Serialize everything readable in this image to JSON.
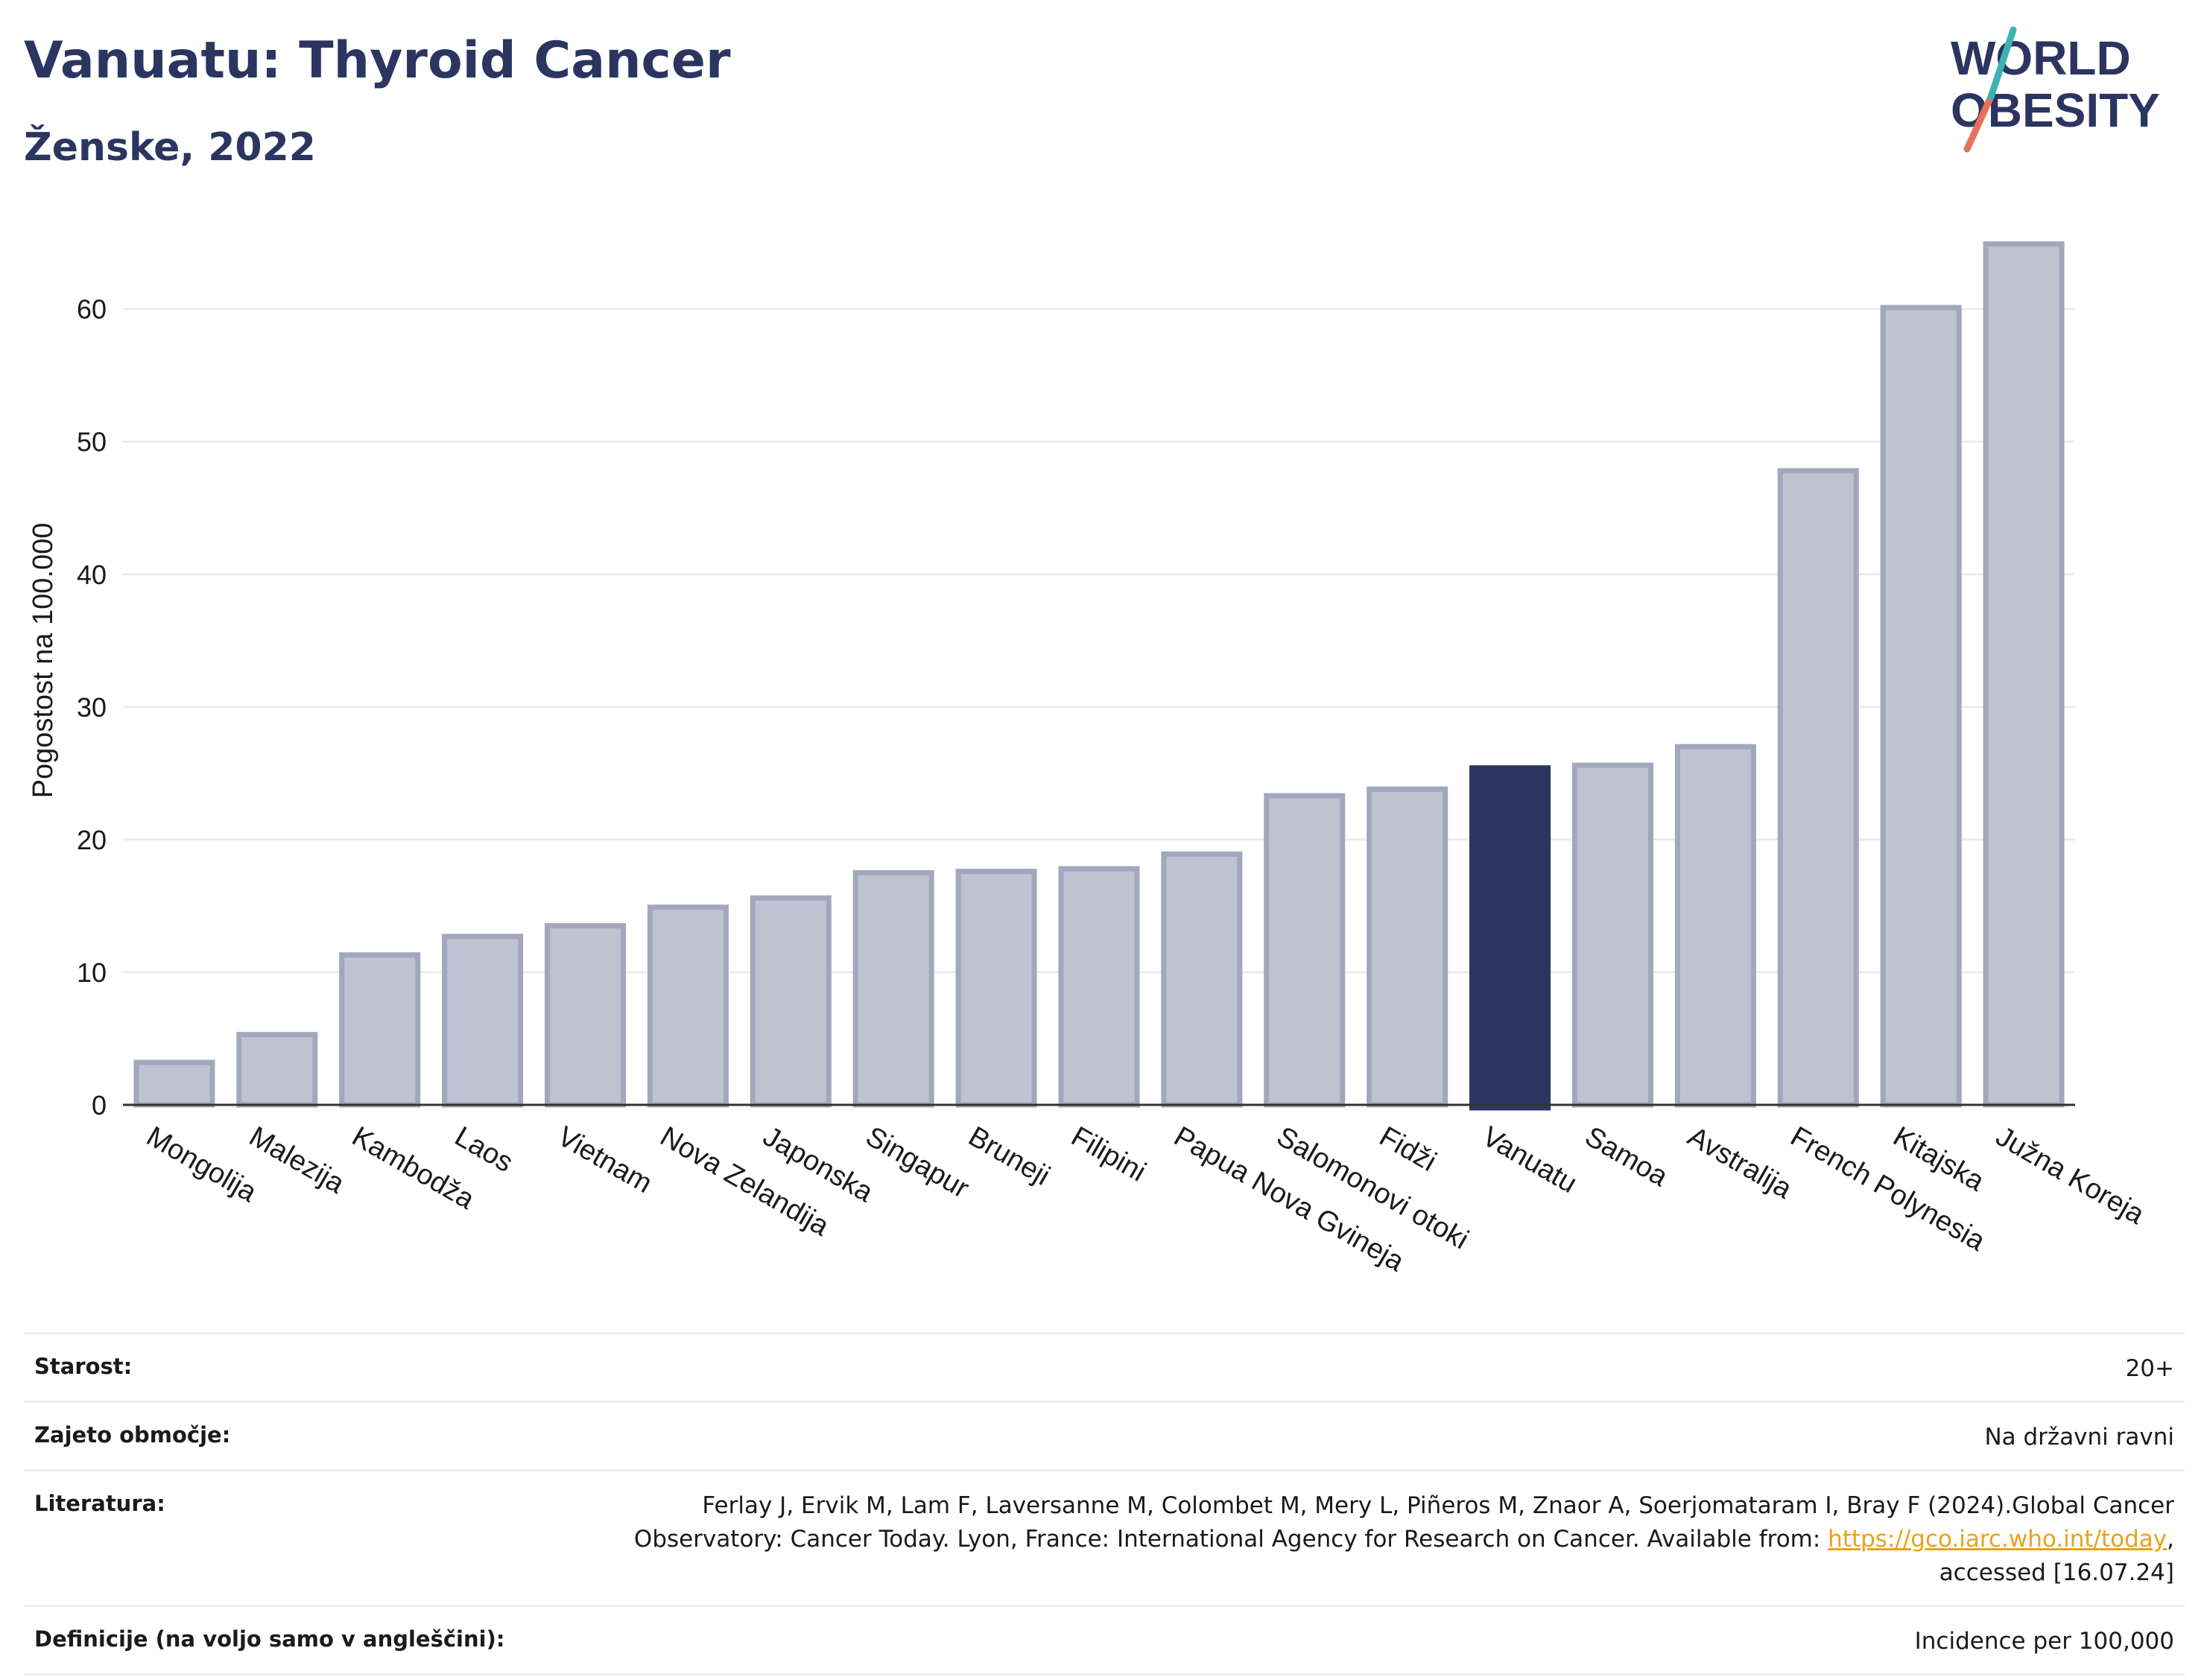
{
  "header": {
    "title": "Vanuatu: Thyroid Cancer",
    "subtitle": "Ženske, 2022",
    "logo_line1": "WORLD",
    "logo_line2": "OBESITY"
  },
  "colors": {
    "bar": "#bfc2d0",
    "bar_border": "#a2a7bd",
    "highlight": "#2b3560",
    "title": "#2b3560",
    "grid": "#ebebef",
    "link": "#e8a317"
  },
  "chart_data": {
    "type": "bar",
    "title": "Vanuatu: Thyroid Cancer",
    "subtitle": "Ženske, 2022",
    "xlabel": "",
    "ylabel": "Pogostost na 100.000",
    "ylim": [
      0,
      67
    ],
    "yticks": [
      0,
      10,
      20,
      30,
      40,
      50,
      60
    ],
    "grid": true,
    "highlight": "Vanuatu",
    "categories": [
      "Mongolija",
      "Malezija",
      "Kambodža",
      "Laos",
      "Vietnam",
      "Nova Zelandija",
      "Japonska",
      "Singapur",
      "Bruneji",
      "Filipini",
      "Papua Nova Gvineja",
      "Salomonovi otoki",
      "Fidži",
      "Vanuatu",
      "Samoa",
      "Avstralija",
      "French Polynesia",
      "Kitajska",
      "Južna Koreja"
    ],
    "values": [
      3.2,
      5.3,
      11.3,
      12.7,
      13.5,
      14.9,
      15.6,
      17.5,
      17.6,
      17.8,
      18.9,
      23.3,
      23.8,
      25.4,
      25.6,
      27.0,
      47.8,
      60.1,
      64.9
    ]
  },
  "info": {
    "age_label": "Starost:",
    "age_value": "20+",
    "coverage_label": "Zajeto območje:",
    "coverage_value": "Na državni ravni",
    "reference_label": "Literatura:",
    "reference_text": "Ferlay J, Ervik M, Lam F, Laversanne M, Colombet M, Mery L, Piñeros M, Znaor A, Soerjomataram I, Bray F (2024).Global Cancer Observatory: Cancer Today. Lyon, France: International Agency for Research on Cancer. Available from: ",
    "reference_link": "https://gco.iarc.who.int/today",
    "reference_tail": ", accessed [16.07.24]",
    "definitions_label": "Definicije (na voljo samo v angleščini):",
    "definitions_value": "Incidence per 100,000"
  }
}
